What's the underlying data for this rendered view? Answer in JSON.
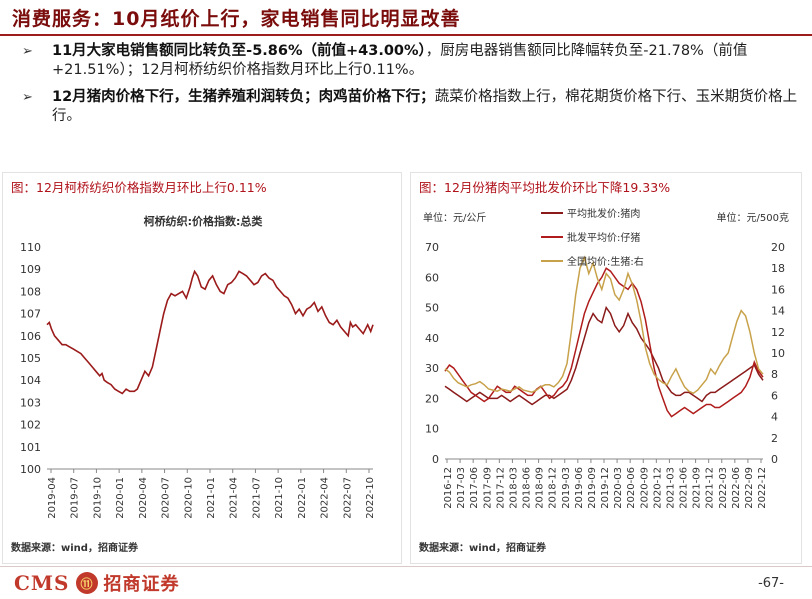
{
  "header": {
    "title": "消费服务：10月纸价上行，家电销售同比明显改善"
  },
  "bullets": [
    {
      "bold": "11月大家电销售额同比转负至-5.86%（前值+43.00%）",
      "text": "，厨房电器销售额同比降幅转负至-21.78%（前值+21.51%）；12月柯桥纺织价格指数月环比上行0.11%。"
    },
    {
      "bold": "12月猪肉价格下行，生猪养殖利润转负；肉鸡苗价格下行；",
      "text": "蔬菜价格指数上行，棉花期货价格下行、玉米期货价格上行。"
    }
  ],
  "footer": {
    "logo_latin": "CMS",
    "logo_badge": "⑪",
    "logo_cn": "招商证券",
    "page": "-67-"
  },
  "chart_data": [
    {
      "type": "line",
      "caption": "图：12月柯桥纺织价格指数月环比上行0.11%",
      "title": "柯桥纺织:价格指数:总类",
      "source": "数据来源：wind，招商证券",
      "ylim": [
        100,
        110
      ],
      "yticks": [
        "100",
        "101",
        "102",
        "103",
        "104",
        "105",
        "106",
        "107",
        "108",
        "109",
        "110"
      ],
      "xticks": [
        "2019-04",
        "2019-07",
        "2019-10",
        "2020-01",
        "2020-04",
        "2020-07",
        "2020-10",
        "2021-01",
        "2021-04",
        "2021-07",
        "2021-10",
        "2022-01",
        "2022-04",
        "2022-07",
        "2022-10"
      ],
      "series": [
        {
          "name": "柯桥纺织:价格指数:总类",
          "color": "#9b1b1b",
          "x": [
            0,
            0.3,
            0.6,
            1,
            1.5,
            2,
            2.5,
            3,
            3.5,
            4,
            4.5,
            5,
            5.5,
            6,
            6.5,
            7,
            7.3,
            7.6,
            8,
            8.5,
            9,
            9.5,
            10,
            10.5,
            11,
            11.3,
            11.6,
            12,
            12.5,
            13,
            13.5,
            14,
            14.5,
            15,
            15.5,
            16,
            16.5,
            17,
            17.5,
            18,
            18.5,
            19,
            19.3,
            19.6,
            20,
            20.5,
            21,
            21.5,
            22,
            22.5,
            23,
            23.5,
            24,
            24.5,
            25,
            25.5,
            26,
            26.5,
            27,
            27.5,
            28,
            28.5,
            29,
            29.5,
            30,
            30.5,
            31,
            31.5,
            32,
            32.5,
            33,
            33.5,
            34,
            34.5,
            35,
            35.5,
            36,
            36.5,
            37,
            37.5,
            38,
            38.5,
            39,
            39.5,
            40,
            40.3,
            40.6,
            41,
            41.5,
            42,
            42.3,
            42.6,
            43,
            43.3
          ],
          "values": [
            106.5,
            106.6,
            106.3,
            106.0,
            105.8,
            105.6,
            105.6,
            105.5,
            105.4,
            105.3,
            105.2,
            105.0,
            104.8,
            104.6,
            104.4,
            104.2,
            104.3,
            104.0,
            103.9,
            103.8,
            103.6,
            103.5,
            103.4,
            103.6,
            103.5,
            103.5,
            103.5,
            103.6,
            104.0,
            104.4,
            104.2,
            104.6,
            105.4,
            106.2,
            107.0,
            107.6,
            107.9,
            107.8,
            107.9,
            108.0,
            107.7,
            108.2,
            108.6,
            108.9,
            108.7,
            108.2,
            108.1,
            108.5,
            108.7,
            108.3,
            108.0,
            107.9,
            108.3,
            108.4,
            108.6,
            108.9,
            108.8,
            108.7,
            108.5,
            108.3,
            108.4,
            108.7,
            108.8,
            108.6,
            108.5,
            108.2,
            108.0,
            107.8,
            107.7,
            107.4,
            107.0,
            107.2,
            106.9,
            107.2,
            107.3,
            107.5,
            107.1,
            107.3,
            106.9,
            106.6,
            106.5,
            106.7,
            106.4,
            106.2,
            106.0,
            106.6,
            106.4,
            106.5,
            106.3,
            106.1,
            106.3,
            106.5,
            106.2,
            106.5
          ]
        }
      ]
    },
    {
      "type": "line",
      "caption": "图：12月份猪肉平均批发价环比下降19.33%",
      "source": "数据来源：wind，招商证券",
      "left_unit": "单位：元/公斤",
      "right_unit": "单位：元/500克",
      "ylim_left": [
        0,
        70
      ],
      "yticks_left": [
        "0",
        "10",
        "20",
        "30",
        "40",
        "50",
        "60",
        "70"
      ],
      "ylim_right": [
        0,
        20
      ],
      "yticks_right": [
        "0",
        "2",
        "4",
        "6",
        "8",
        "10",
        "12",
        "14",
        "16",
        "18",
        "20"
      ],
      "xticks": [
        "2016-12",
        "2017-03",
        "2017-06",
        "2017-09",
        "2017-12",
        "2018-03",
        "2018-06",
        "2018-09",
        "2018-12",
        "2019-03",
        "2019-06",
        "2019-09",
        "2019-12",
        "2020-03",
        "2020-06",
        "2020-09",
        "2020-12",
        "2021-03",
        "2021-06",
        "2021-09",
        "2021-12",
        "2022-03",
        "2022-06",
        "2022-09",
        "2022-12"
      ],
      "series": [
        {
          "name": "平均批发价:猪肉",
          "axis": "left",
          "color": "#8b1a1a",
          "x": [
            0,
            1,
            2,
            3,
            4,
            5,
            6,
            7,
            8,
            9,
            10,
            11,
            12,
            13,
            14,
            15,
            16,
            17,
            18,
            19,
            20,
            21,
            22,
            23,
            24,
            25,
            26,
            27,
            28,
            29,
            30,
            31,
            32,
            33,
            34,
            35,
            36,
            37,
            38,
            39,
            40,
            41,
            42,
            43,
            44,
            45,
            46,
            47,
            48,
            49,
            50,
            51,
            52,
            53,
            54,
            55,
            56,
            57,
            58,
            59,
            60,
            61,
            62,
            63,
            64,
            65,
            66,
            67,
            68,
            69,
            70,
            71,
            72,
            73
          ],
          "values": [
            24,
            23,
            22,
            21,
            20,
            19,
            20,
            21,
            22,
            21,
            20,
            20,
            20,
            21,
            20,
            19,
            20,
            21,
            20,
            19,
            18,
            19,
            20,
            21,
            21,
            20,
            21,
            22,
            23,
            26,
            30,
            35,
            40,
            45,
            48,
            46,
            45,
            50,
            48,
            44,
            42,
            44,
            48,
            45,
            43,
            40,
            38,
            36,
            33,
            30,
            26,
            24,
            22,
            21,
            21,
            22,
            22,
            21,
            20,
            19,
            21,
            22,
            22,
            23,
            24,
            25,
            26,
            27,
            28,
            29,
            30,
            31,
            28,
            26
          ]
        },
        {
          "name": "批发平均价:仔猪",
          "axis": "left",
          "color": "#b01c1c",
          "x": [
            0,
            1,
            2,
            3,
            4,
            5,
            6,
            7,
            8,
            9,
            10,
            11,
            12,
            13,
            14,
            15,
            16,
            17,
            18,
            19,
            20,
            21,
            22,
            23,
            24,
            25,
            26,
            27,
            28,
            29,
            30,
            31,
            32,
            33,
            34,
            35,
            36,
            37,
            38,
            39,
            40,
            41,
            42,
            43,
            44,
            45,
            46,
            47,
            48,
            49,
            50,
            51,
            52,
            53,
            54,
            55,
            56,
            57,
            58,
            59,
            60,
            61,
            62,
            63,
            64,
            65,
            66,
            67,
            68,
            69,
            70,
            71,
            72,
            73
          ],
          "values": [
            29,
            31,
            30,
            28,
            26,
            24,
            22,
            21,
            20,
            19,
            20,
            22,
            24,
            23,
            22,
            22,
            24,
            23,
            22,
            21,
            21,
            23,
            24,
            22,
            20,
            21,
            23,
            24,
            26,
            30,
            36,
            42,
            48,
            52,
            55,
            58,
            60,
            63,
            62,
            60,
            58,
            57,
            56,
            58,
            56,
            52,
            46,
            38,
            30,
            24,
            20,
            16,
            14,
            15,
            16,
            17,
            16,
            15,
            16,
            17,
            18,
            18,
            17,
            17,
            18,
            19,
            20,
            21,
            22,
            24,
            27,
            32,
            29,
            27
          ]
        },
        {
          "name": "全国均价:生猪:右",
          "axis": "right",
          "color": "#c8a24a",
          "x": [
            0,
            1,
            2,
            3,
            4,
            5,
            6,
            7,
            8,
            9,
            10,
            11,
            12,
            13,
            14,
            15,
            16,
            17,
            18,
            19,
            20,
            21,
            22,
            23,
            24,
            25,
            26,
            27,
            28,
            29,
            30,
            31,
            32,
            33,
            34,
            35,
            36,
            37,
            38,
            39,
            40,
            41,
            42,
            43,
            44,
            45,
            46,
            47,
            48,
            49,
            50,
            51,
            52,
            53,
            54,
            55,
            56,
            57,
            58,
            59,
            60,
            61,
            62,
            63,
            64,
            65,
            66,
            67,
            68,
            69,
            70,
            71,
            72,
            73
          ],
          "values": [
            8.5,
            8.2,
            7.6,
            7.2,
            7.0,
            6.8,
            7.0,
            7.1,
            7.3,
            7.0,
            6.6,
            6.5,
            6.4,
            6.6,
            6.5,
            6.4,
            6.6,
            6.8,
            6.5,
            6.4,
            6.3,
            6.5,
            6.8,
            7.0,
            7.0,
            6.8,
            7.2,
            7.8,
            9.0,
            12.0,
            15.5,
            18.0,
            19.0,
            17.5,
            18.5,
            17.0,
            16.0,
            17.5,
            17.0,
            15.5,
            15.0,
            16.0,
            17.5,
            16.5,
            15.0,
            13.0,
            10.5,
            9.0,
            8.0,
            7.5,
            7.2,
            7.0,
            7.8,
            8.5,
            7.6,
            6.8,
            6.4,
            6.2,
            6.5,
            7.0,
            7.5,
            8.5,
            8.0,
            8.8,
            9.5,
            10.0,
            11.5,
            13.0,
            14.0,
            13.5,
            12.0,
            10.0,
            8.5,
            8.0
          ]
        }
      ]
    }
  ]
}
